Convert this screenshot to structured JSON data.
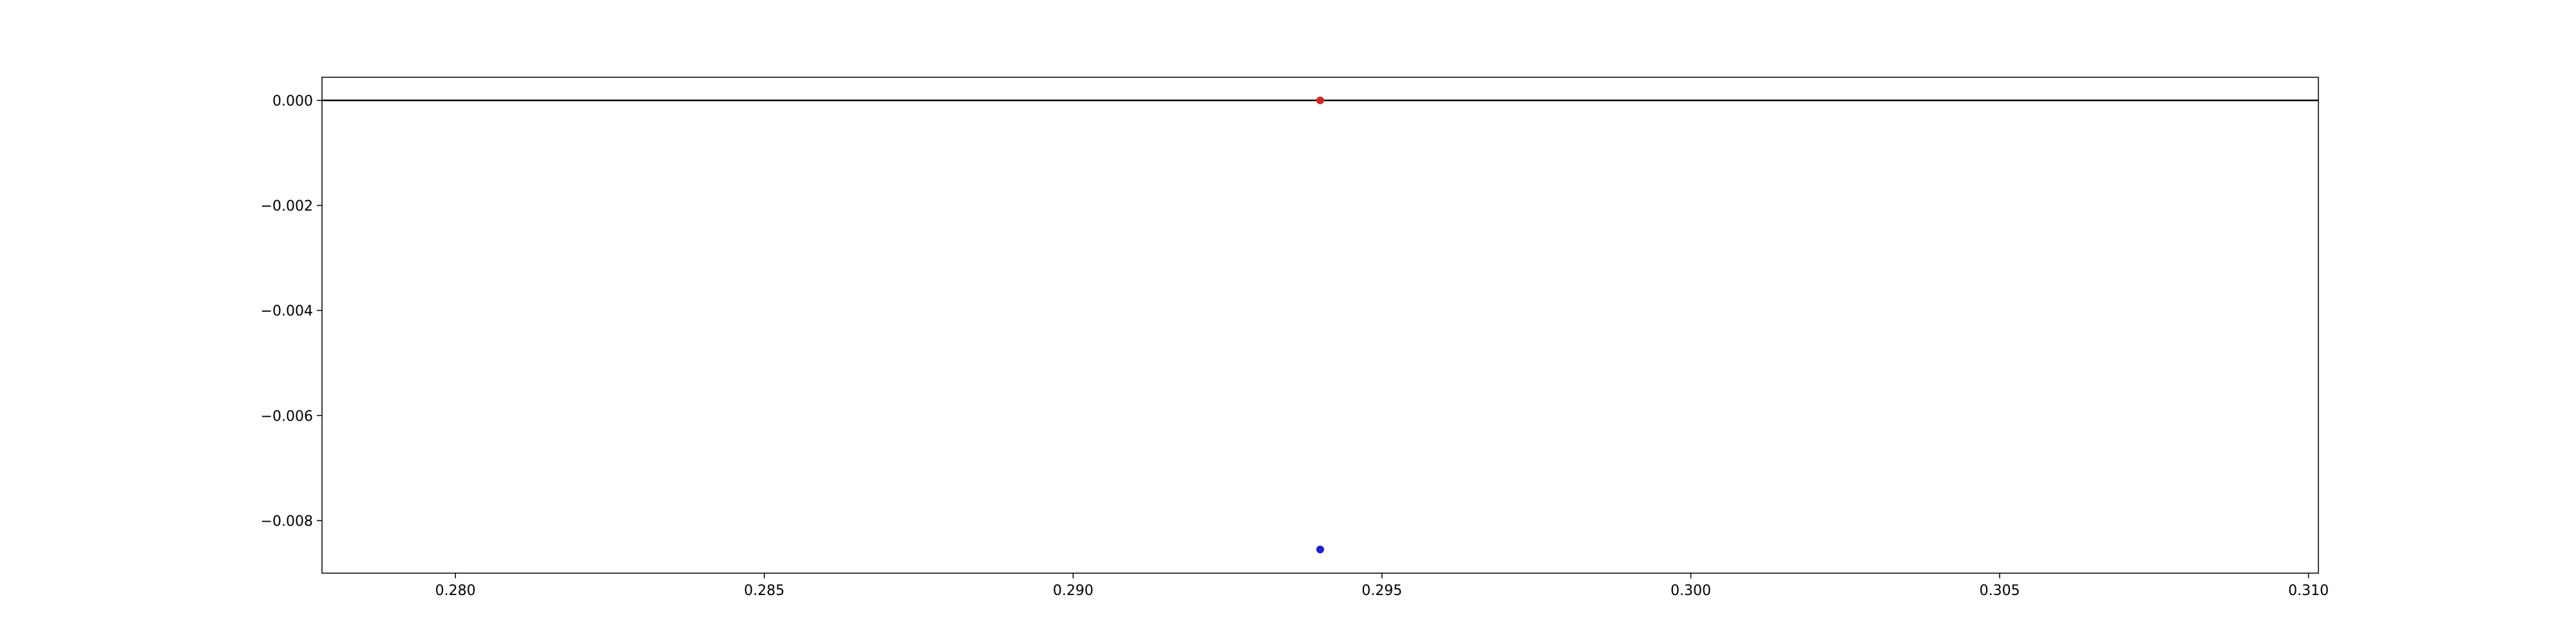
{
  "chart_data": {
    "type": "scatter",
    "title": "",
    "xlabel": "",
    "ylabel": "",
    "xlim": [
      0.27784,
      0.31016
    ],
    "ylim": [
      -0.009,
      0.00044
    ],
    "grid": false,
    "x_ticks": [
      {
        "value": 0.28,
        "label": "0.280"
      },
      {
        "value": 0.285,
        "label": "0.285"
      },
      {
        "value": 0.29,
        "label": "0.290"
      },
      {
        "value": 0.295,
        "label": "0.295"
      },
      {
        "value": 0.3,
        "label": "0.300"
      },
      {
        "value": 0.305,
        "label": "0.305"
      },
      {
        "value": 0.31,
        "label": "0.310"
      }
    ],
    "y_ticks": [
      {
        "value": 0.0,
        "label": "0.000"
      },
      {
        "value": -0.002,
        "label": "−0.002"
      },
      {
        "value": -0.004,
        "label": "−0.004"
      },
      {
        "value": -0.006,
        "label": "−0.006"
      },
      {
        "value": -0.008,
        "label": "−0.008"
      }
    ],
    "reference_lines": [
      {
        "orientation": "horizontal",
        "y": 0.0,
        "color": "#000000"
      }
    ],
    "series": [
      {
        "color": "#d62728",
        "points": [
          {
            "x": 0.294,
            "y": 0.0
          }
        ]
      },
      {
        "color": "#1f1fcc",
        "points": [
          {
            "x": 0.294,
            "y": -0.00855
          }
        ]
      }
    ]
  }
}
